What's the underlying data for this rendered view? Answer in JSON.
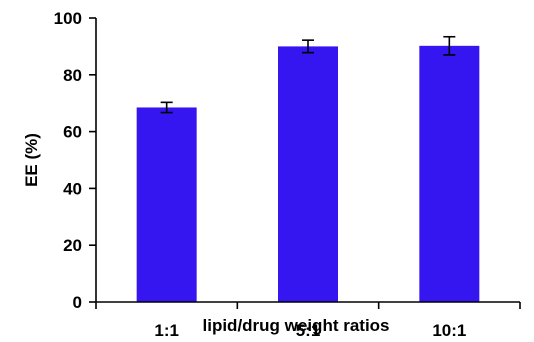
{
  "chart_data": {
    "type": "bar",
    "categories": [
      "1:1",
      "5:1",
      "10:1"
    ],
    "values": [
      68.5,
      90.0,
      90.2
    ],
    "errors": [
      1.8,
      2.2,
      3.2
    ],
    "xlabel": "lipid/drug weight ratios",
    "ylabel": "EE (%)",
    "ylim": [
      0,
      100
    ],
    "yticks": [
      "0",
      "20",
      "40",
      "60",
      "80",
      "100"
    ],
    "bar_color": "#3516f0",
    "grid": false,
    "legend": "none"
  }
}
